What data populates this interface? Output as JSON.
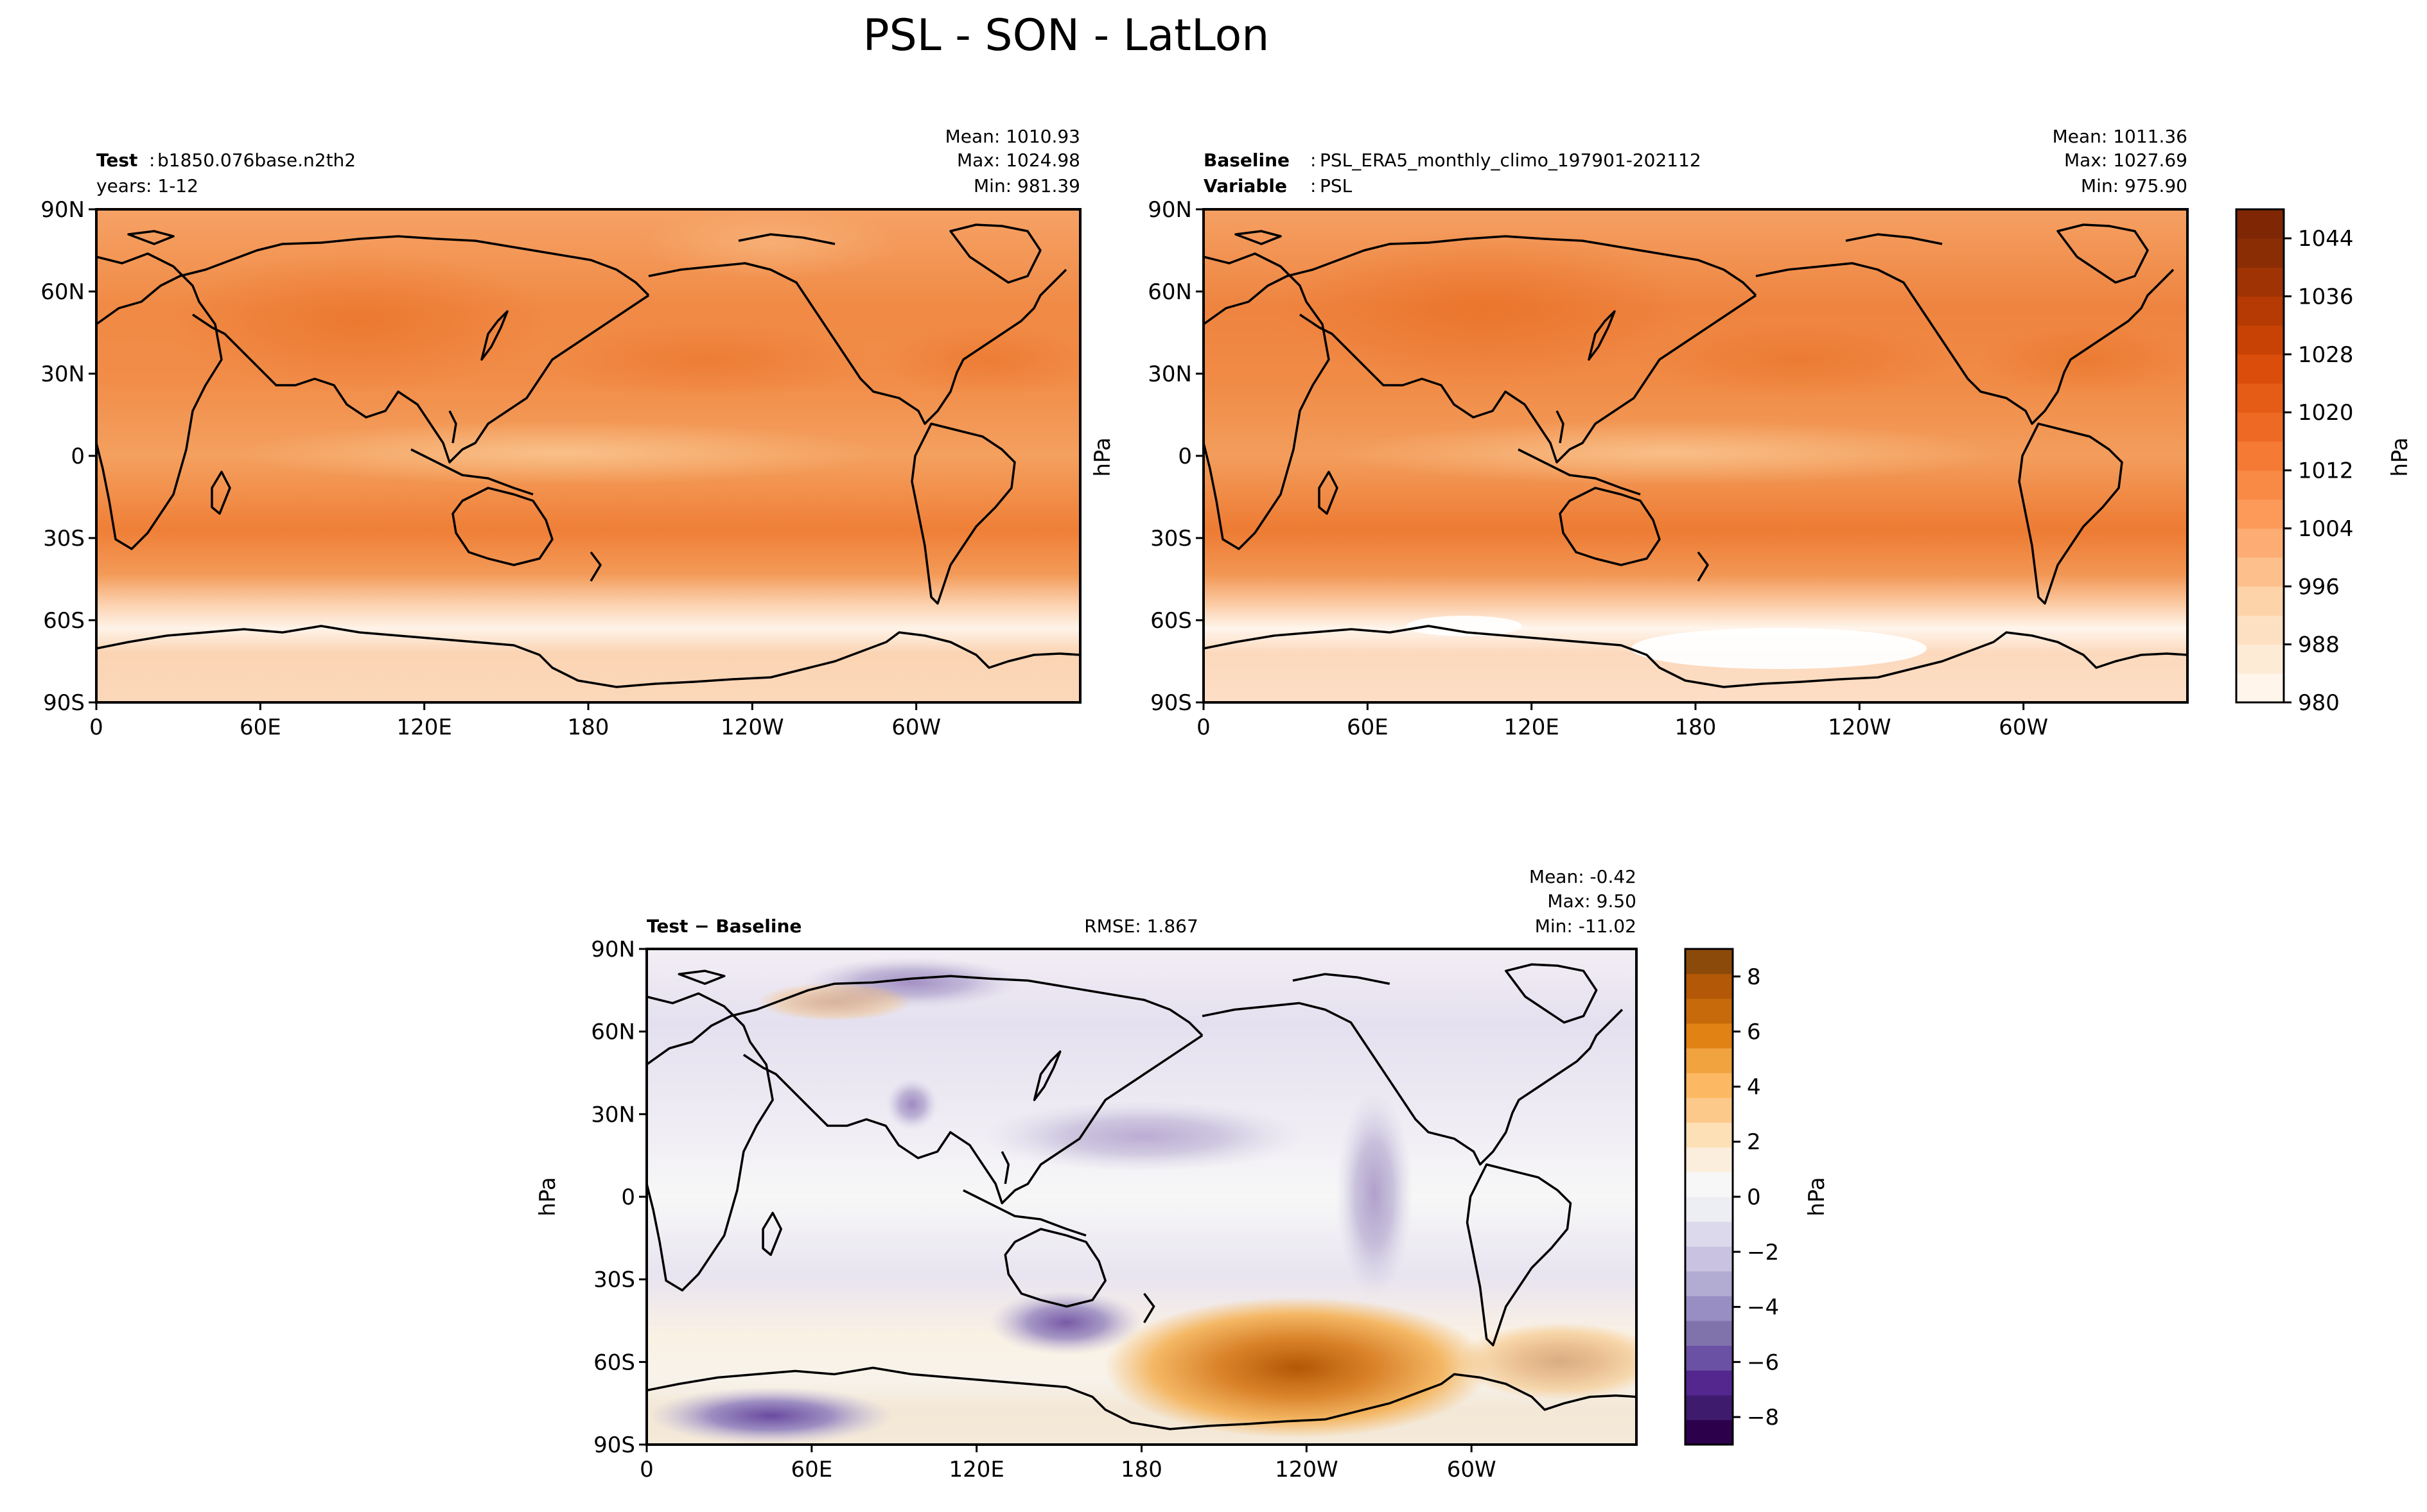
{
  "figure": {
    "title": "PSL - SON - LatLon"
  },
  "axes": {
    "lat_ticks": [
      "90N",
      "60N",
      "30N",
      "0",
      "30S",
      "60S",
      "90S"
    ],
    "lon_ticks": [
      "0",
      "60E",
      "120E",
      "180",
      "120W",
      "60W"
    ],
    "units_label": "hPa"
  },
  "panels": {
    "test": {
      "label_bold": "Test",
      "label_sep": ":",
      "case": "b1850.076base.n2th2",
      "years": "years: 1-12",
      "stats": {
        "mean": "Mean: 1010.93",
        "max": "Max: 1024.98",
        "min": "Min: 981.39"
      }
    },
    "baseline": {
      "label_bold": "Baseline",
      "label_sep": ":",
      "case": "PSL_ERA5_monthly_climo_197901-202112",
      "variable_bold": "Variable",
      "variable": "PSL",
      "stats": {
        "mean": "Mean: 1011.36",
        "max": "Max: 1027.69",
        "min": "Min: 975.90"
      }
    },
    "diff": {
      "label": "Test − Baseline",
      "rmse": "RMSE: 1.867",
      "stats": {
        "mean": "Mean: -0.42",
        "max": "Max:  9.50",
        "min": "Min: -11.02"
      }
    }
  },
  "colorbars": {
    "main": {
      "labels": [
        "1044",
        "1036",
        "1028",
        "1020",
        "1012",
        "1004",
        "996",
        "988",
        "980"
      ],
      "units": "hPa",
      "colormap": "Oranges",
      "range": [
        980,
        1048
      ]
    },
    "diff": {
      "labels": [
        "8",
        "6",
        "4",
        "2",
        "0",
        "−2",
        "−4",
        "−6",
        "−8"
      ],
      "units": "hPa",
      "colormap": "PuOr",
      "range": [
        -9,
        9
      ]
    }
  },
  "chart_data": [
    {
      "type": "heatmap",
      "title": "Test",
      "variable": "PSL",
      "season": "SON",
      "xlabel_ticks": [
        "0",
        "60E",
        "120E",
        "180",
        "120W",
        "60W"
      ],
      "ylabel_ticks": [
        "90N",
        "60N",
        "30N",
        "0",
        "30S",
        "60S",
        "90S"
      ],
      "xlim": [
        0,
        360
      ],
      "ylim": [
        -90,
        90
      ],
      "value_range": [
        980,
        1048
      ],
      "mean": 1010.93,
      "max": 1024.98,
      "min": 981.39
    },
    {
      "type": "heatmap",
      "title": "Baseline",
      "variable": "PSL",
      "season": "SON",
      "xlabel_ticks": [
        "0",
        "60E",
        "120E",
        "180",
        "120W",
        "60W"
      ],
      "ylabel_ticks": [
        "90N",
        "60N",
        "30N",
        "0",
        "30S",
        "60S",
        "90S"
      ],
      "xlim": [
        0,
        360
      ],
      "ylim": [
        -90,
        90
      ],
      "value_range": [
        980,
        1048
      ],
      "mean": 1011.36,
      "max": 1027.69,
      "min": 975.9
    },
    {
      "type": "heatmap",
      "title": "Test − Baseline",
      "variable": "PSL",
      "season": "SON",
      "xlabel_ticks": [
        "0",
        "60E",
        "120E",
        "180",
        "120W",
        "60W"
      ],
      "ylabel_ticks": [
        "90N",
        "60N",
        "30N",
        "0",
        "30S",
        "60S",
        "90S"
      ],
      "xlim": [
        0,
        360
      ],
      "ylim": [
        -90,
        90
      ],
      "value_range": [
        -9,
        9
      ],
      "mean": -0.42,
      "max": 9.5,
      "min": -11.02,
      "rmse": 1.867
    }
  ]
}
